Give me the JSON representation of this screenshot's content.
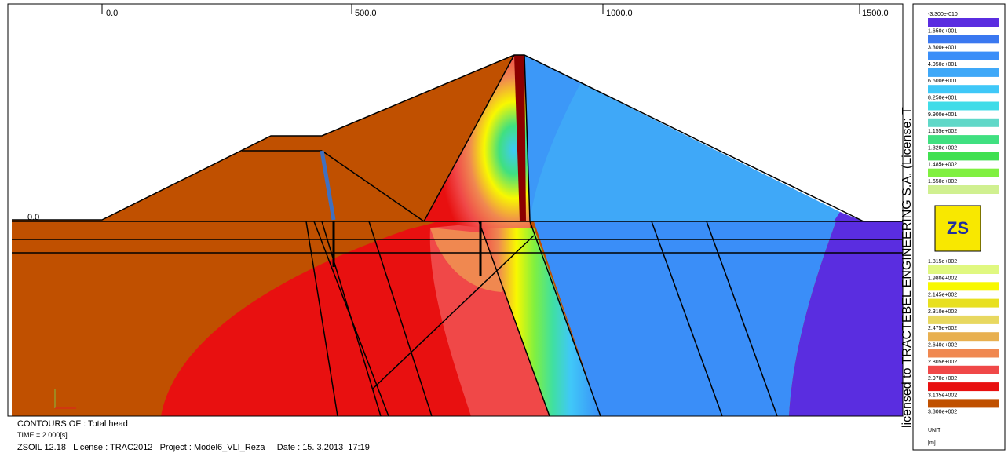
{
  "plot": {
    "x_labels": [
      "0.0",
      "500.0",
      "1000.0",
      "1500.0"
    ],
    "y_label": "0.0"
  },
  "watermark": "licensed to TRACTEBEL ENGINEERING S.A. (License: T",
  "legend": {
    "labels": [
      "-3.300e-010",
      "1.650e+001",
      "3.300e+001",
      "4.950e+001",
      "6.600e+001",
      "8.250e+001",
      "9.900e+001",
      "1.155e+002",
      "1.320e+002",
      "1.485e+002",
      "1.650e+002",
      "1.815e+002",
      "1.980e+002",
      "2.145e+002",
      "2.310e+002",
      "2.475e+002",
      "2.640e+002",
      "2.805e+002",
      "2.970e+002",
      "3.135e+002",
      "3.300e+002"
    ],
    "colors": [
      "#5a2de0",
      "#3a78f0",
      "#3a8ef8",
      "#3fa8f8",
      "#3fc8f8",
      "#40dce8",
      "#60d8c8",
      "#40e080",
      "#40e050",
      "#80f040",
      "#d0f090",
      "#e0f880",
      "#f8f800",
      "#e8e020",
      "#e8d860",
      "#e8b050",
      "#f08850",
      "#f04848",
      "#e81010",
      "#c05000"
    ],
    "unit_title": "UNIT",
    "unit": "[m]"
  },
  "footer": {
    "contours": "CONTOURS OF : Total head",
    "time": "TIME = 2.000[s]",
    "info": "ZSOIL 12.18   License : TRAC2012   Project : Model6_VLI_Reza     Date : 15. 3.2013  17:19"
  }
}
